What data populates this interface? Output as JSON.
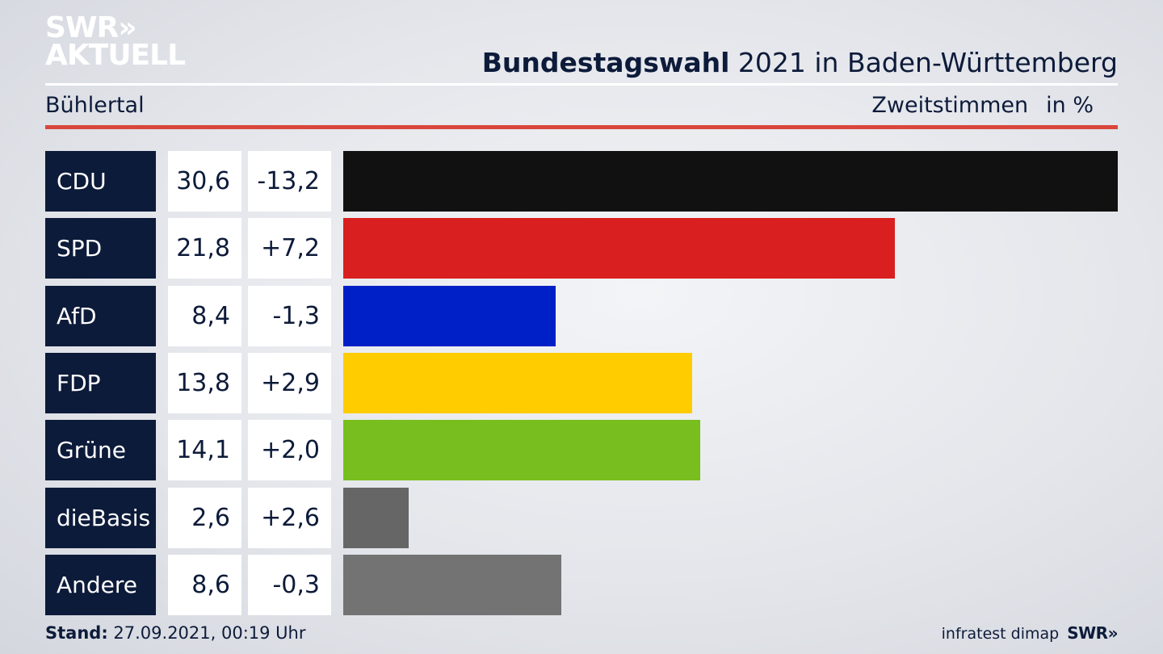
{
  "logo": {
    "line1": "SWR",
    "chevrons": "»",
    "line2": "AKTUELL"
  },
  "header": {
    "title_bold": "Bundestagswahl",
    "title_rest": " 2021 in Baden-Württemberg"
  },
  "subheader": {
    "location": "Bühlertal",
    "measure": "Zweitstimmen",
    "unit": "in %"
  },
  "chart_data": {
    "type": "bar",
    "orientation": "horizontal",
    "categories": [
      "CDU",
      "SPD",
      "AfD",
      "FDP",
      "Grüne",
      "dieBasis",
      "Andere"
    ],
    "values": [
      30.6,
      21.8,
      8.4,
      13.8,
      14.1,
      2.6,
      8.6
    ],
    "value_labels": [
      "30,6",
      "21,8",
      "8,4",
      "13,8",
      "14,1",
      "2,6",
      "8,6"
    ],
    "changes": [
      "-13,2",
      "+7,2",
      "-1,3",
      "+2,9",
      "+2,0",
      "+2,6",
      "-0,3"
    ],
    "colors": [
      "#111111",
      "#d91f1f",
      "#0020c7",
      "#ffcc00",
      "#78be1e",
      "#666666",
      "#737373"
    ],
    "xlim": [
      0,
      30.6
    ]
  },
  "footer": {
    "stand_label": "Stand:",
    "stand_value": " 27.09.2021, 00:19 Uhr",
    "source": "infratest dimap",
    "brand": "SWR",
    "brand_chevrons": "»"
  },
  "theme": {
    "navy": "#0d1b3a",
    "accent_red": "#d9463b"
  }
}
